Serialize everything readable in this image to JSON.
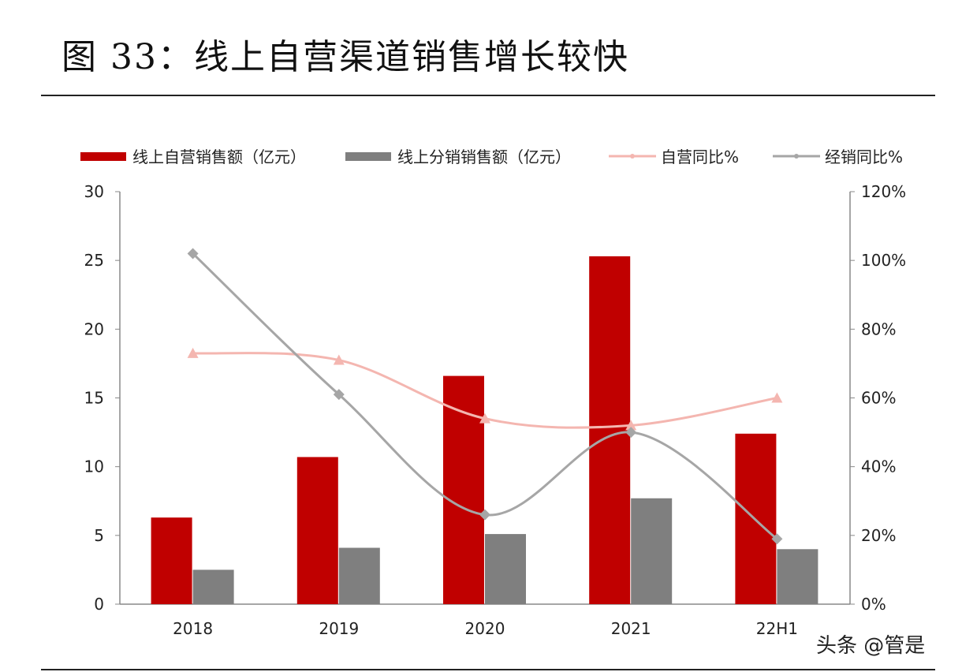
{
  "title": "图 33：线上自营渠道销售增长较快",
  "watermark": "头条 @管是",
  "chart_data": {
    "type": "bar+line",
    "categories": [
      "2018",
      "2019",
      "2020",
      "2021",
      "22H1"
    ],
    "series": [
      {
        "name": "线上自营销售额（亿元）",
        "type": "bar",
        "axis": "left",
        "color": "#c00000",
        "values": [
          6.3,
          10.7,
          16.6,
          25.3,
          12.4
        ]
      },
      {
        "name": "线上分销销售额（亿元）",
        "type": "bar",
        "axis": "left",
        "color": "#7f7f7f",
        "values": [
          2.5,
          4.1,
          5.1,
          7.7,
          4.0
        ]
      },
      {
        "name": "自营同比%",
        "type": "line",
        "axis": "right",
        "color": "#f4b6b0",
        "marker": "triangle",
        "values": [
          73,
          71,
          54,
          52,
          60
        ]
      },
      {
        "name": "经销同比%",
        "type": "line",
        "axis": "right",
        "color": "#a6a6a6",
        "marker": "diamond",
        "values": [
          102,
          61,
          26,
          50,
          19
        ]
      }
    ],
    "left_axis": {
      "ylim": [
        0,
        30
      ],
      "ticks": [
        "0",
        "5",
        "10",
        "15",
        "20",
        "25",
        "30"
      ]
    },
    "right_axis": {
      "ylim": [
        0,
        120
      ],
      "ticks": [
        "0%",
        "20%",
        "40%",
        "60%",
        "80%",
        "100%",
        "120%"
      ]
    },
    "legend": "top",
    "grid": false
  }
}
